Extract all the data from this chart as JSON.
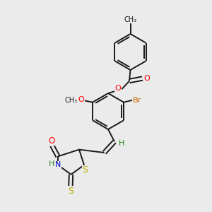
{
  "background_color": "#ebebeb",
  "bond_color": "#1a1a1a",
  "atom_colors": {
    "O": "#ff0000",
    "N": "#0000cc",
    "S": "#bbaa00",
    "Br": "#cc6600",
    "H": "#228822",
    "C": "#1a1a1a"
  },
  "figsize": [
    3.0,
    3.0
  ],
  "dpi": 100,
  "lw": 1.4,
  "fs": 7.5
}
